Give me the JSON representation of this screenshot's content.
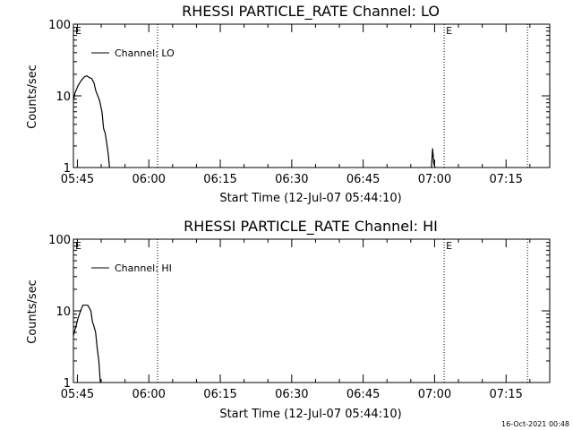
{
  "footer": {
    "timestamp": "16-Oct-2021 00:48"
  },
  "chart_data": [
    {
      "type": "line",
      "title": "RHESSI PARTICLE_RATE Channel: LO",
      "xlabel": "Start Time (12-Jul-07 05:44:10)",
      "ylabel": "Counts/sec",
      "yscale": "log",
      "xlim": [
        "05:44:10",
        "07:24:10"
      ],
      "ylim": [
        1,
        100
      ],
      "x_ticks": [
        "05:45",
        "06:00",
        "06:15",
        "06:30",
        "06:45",
        "07:00",
        "07:15"
      ],
      "y_ticks": [
        "1",
        "10",
        "100"
      ],
      "legend": {
        "position": "top-left",
        "entries": [
          "Channel: LO"
        ]
      },
      "event_markers": [
        {
          "time": "05:44:10",
          "label": "E",
          "line": false
        },
        {
          "time": "06:01:50",
          "label": "",
          "line": true
        },
        {
          "time": "07:02:00",
          "label": "E",
          "line": true
        },
        {
          "time": "07:19:30",
          "label": "",
          "line": true
        }
      ],
      "series": [
        {
          "name": "Channel: LO",
          "segments": [
            [
              [
                "05:44:10",
                8.5
              ],
              [
                "05:44:30",
                11
              ],
              [
                "05:45:10",
                14
              ],
              [
                "05:45:50",
                16.5
              ],
              [
                "05:46:30",
                18.5
              ],
              [
                "05:47:00",
                19
              ],
              [
                "05:47:30",
                18
              ],
              [
                "05:48:00",
                17.5
              ],
              [
                "05:48:30",
                15
              ],
              [
                "05:48:50",
                12
              ],
              [
                "05:49:10",
                10.5
              ],
              [
                "05:49:40",
                8.5
              ],
              [
                "05:50:10",
                6
              ],
              [
                "05:50:30",
                3.5
              ],
              [
                "05:50:50",
                3
              ],
              [
                "05:51:10",
                2.2
              ],
              [
                "05:51:30",
                1.5
              ],
              [
                "05:51:45",
                1
              ]
            ],
            [
              [
                "06:59:20",
                1
              ],
              [
                "06:59:35",
                1.85
              ],
              [
                "06:59:50",
                1.15
              ],
              [
                "07:00:05",
                1
              ]
            ]
          ]
        }
      ]
    },
    {
      "type": "line",
      "title": "RHESSI PARTICLE_RATE Channel: HI",
      "xlabel": "Start Time (12-Jul-07 05:44:10)",
      "ylabel": "Counts/sec",
      "yscale": "log",
      "xlim": [
        "05:44:10",
        "07:24:10"
      ],
      "ylim": [
        1,
        100
      ],
      "x_ticks": [
        "05:45",
        "06:00",
        "06:15",
        "06:30",
        "06:45",
        "07:00",
        "07:15"
      ],
      "y_ticks": [
        "1",
        "10",
        "100"
      ],
      "legend": {
        "position": "top-left",
        "entries": [
          "Channel: HI"
        ]
      },
      "event_markers": [
        {
          "time": "05:44:10",
          "label": "E",
          "line": false
        },
        {
          "time": "06:01:50",
          "label": "",
          "line": true
        },
        {
          "time": "07:02:00",
          "label": "E",
          "line": true
        },
        {
          "time": "07:19:30",
          "label": "",
          "line": true
        }
      ],
      "series": [
        {
          "name": "Channel: HI",
          "segments": [
            [
              [
                "05:44:10",
                4.5
              ],
              [
                "05:44:40",
                6
              ],
              [
                "05:45:10",
                8
              ],
              [
                "05:45:40",
                10
              ],
              [
                "05:46:10",
                12
              ],
              [
                "05:47:10",
                12
              ],
              [
                "05:47:30",
                11
              ],
              [
                "05:47:50",
                10
              ],
              [
                "05:48:10",
                7
              ],
              [
                "05:48:30",
                6
              ],
              [
                "05:48:50",
                5
              ],
              [
                "05:49:10",
                3
              ],
              [
                "05:49:30",
                2
              ],
              [
                "05:49:50",
                1
              ]
            ]
          ]
        }
      ]
    }
  ]
}
